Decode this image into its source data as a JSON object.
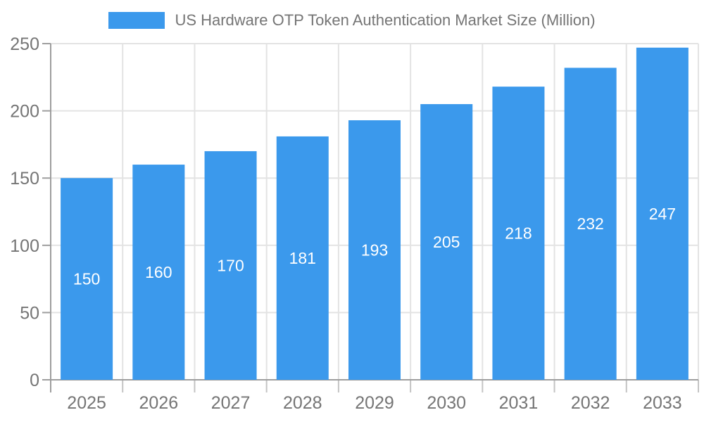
{
  "chart_data": {
    "type": "bar",
    "title": "US Hardware OTP Token Authentication Market Size (Million)",
    "legend_position": "top",
    "categories": [
      "2025",
      "2026",
      "2027",
      "2028",
      "2029",
      "2030",
      "2031",
      "2032",
      "2033"
    ],
    "values": [
      150,
      160,
      170,
      181,
      193,
      205,
      218,
      232,
      247
    ],
    "xlabel": "",
    "ylabel": "",
    "ylim": [
      0,
      250
    ],
    "yticks": [
      0,
      50,
      100,
      150,
      200,
      250
    ],
    "grid": true,
    "colors": {
      "bar": "#3B99EC",
      "value_label": "#FFFFFF",
      "axis": "#9E9E9E",
      "grid": "#E3E3E3",
      "tick_below_axis": "#C4C4C4",
      "text": "#757575",
      "background": "#FFFFFF"
    }
  }
}
